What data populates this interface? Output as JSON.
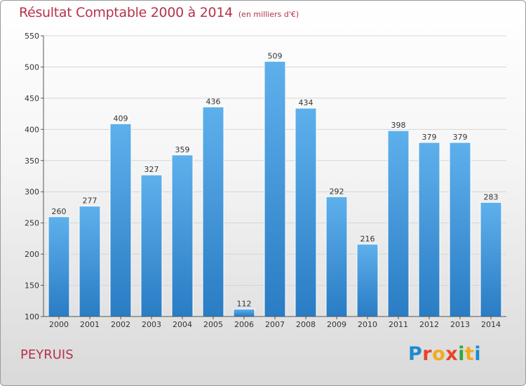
{
  "header": {
    "title": "Résultat Comptable 2000 à 2014",
    "subtitle": "(en milliers d'€)"
  },
  "footer": {
    "place": "PEYRUIS",
    "logo_letters": [
      "P",
      "r",
      "o",
      "x",
      "i",
      "t",
      "i"
    ],
    "logo_colors": [
      "#1e8bd0",
      "#e8442a",
      "#f4a91c",
      "#e8442a",
      "#31a83c",
      "#f4a91c",
      "#1e8bd0"
    ]
  },
  "colors": {
    "bar_light": "#5eb0ec",
    "bar_dark": "#2a7cc4",
    "title": "#b5334a"
  },
  "chart_data": {
    "type": "bar",
    "title": "Résultat Comptable 2000 à 2014",
    "subtitle": "(en milliers d'€)",
    "xlabel": "",
    "ylabel": "",
    "categories": [
      "2000",
      "2001",
      "2002",
      "2003",
      "2004",
      "2005",
      "2006",
      "2007",
      "2008",
      "2009",
      "2010",
      "2011",
      "2012",
      "2013",
      "2014"
    ],
    "values": [
      260,
      277,
      409,
      327,
      359,
      436,
      112,
      509,
      434,
      292,
      216,
      398,
      379,
      379,
      283
    ],
    "ylim": [
      100,
      550
    ],
    "yticks": [
      100,
      150,
      200,
      250,
      300,
      350,
      400,
      450,
      500,
      550
    ],
    "grid": true,
    "legend": "none"
  }
}
